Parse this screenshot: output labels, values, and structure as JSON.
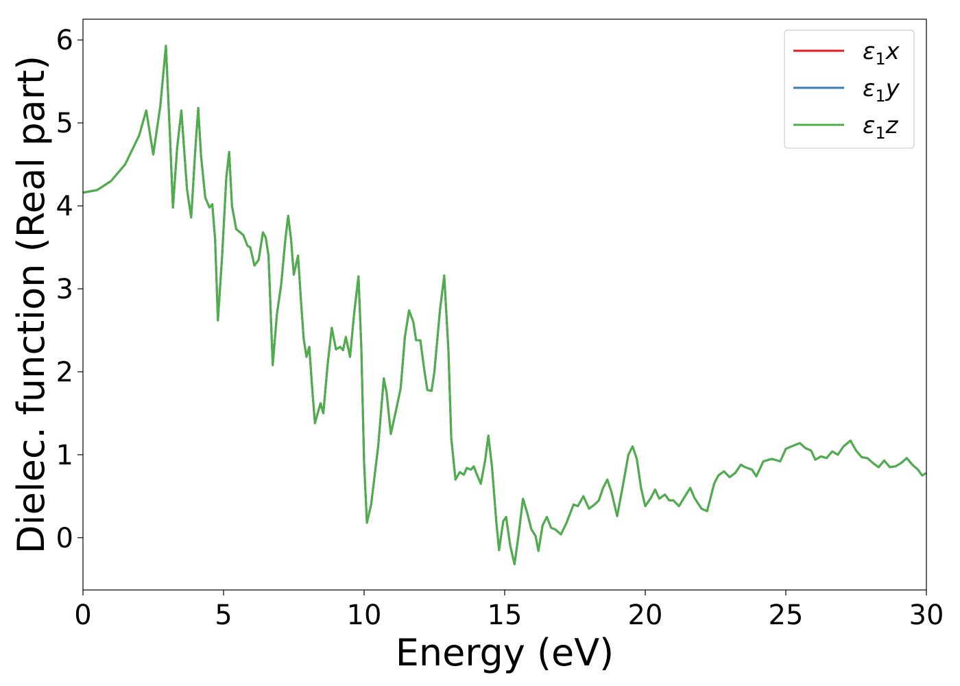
{
  "chart_data": {
    "type": "line",
    "xlabel": "Energy (eV)",
    "ylabel": "Dielec. function (Real part)",
    "xlim": [
      0,
      30
    ],
    "ylim": [
      -0.63,
      6.25
    ],
    "x_ticks": [
      0,
      5,
      10,
      15,
      20,
      25,
      30
    ],
    "y_ticks": [
      0,
      1,
      2,
      3,
      4,
      5,
      6
    ],
    "grid": false,
    "legend_position": "top-right",
    "series": [
      {
        "name": "ε1x",
        "legend_base": "ε",
        "legend_sub": "1",
        "legend_suffix": "x",
        "color": "#e41a1c",
        "points": [
          [
            0,
            4.16
          ],
          [
            0.5,
            4.19
          ],
          [
            1.0,
            4.3
          ],
          [
            1.5,
            4.5
          ],
          [
            2.0,
            4.85
          ],
          [
            2.25,
            5.15
          ],
          [
            2.5,
            4.62
          ],
          [
            2.75,
            5.2
          ],
          [
            2.95,
            5.93
          ],
          [
            3.1,
            4.8
          ],
          [
            3.2,
            3.98
          ],
          [
            3.35,
            4.7
          ],
          [
            3.5,
            5.15
          ],
          [
            3.7,
            4.2
          ],
          [
            3.85,
            3.86
          ],
          [
            4.0,
            4.7
          ],
          [
            4.1,
            5.18
          ],
          [
            4.2,
            4.6
          ],
          [
            4.35,
            4.1
          ],
          [
            4.5,
            3.98
          ],
          [
            4.6,
            4.02
          ],
          [
            4.7,
            3.6
          ],
          [
            4.8,
            2.62
          ],
          [
            4.95,
            3.4
          ],
          [
            5.1,
            4.35
          ],
          [
            5.2,
            4.65
          ],
          [
            5.3,
            4.0
          ],
          [
            5.45,
            3.72
          ],
          [
            5.7,
            3.65
          ],
          [
            5.85,
            3.52
          ],
          [
            5.95,
            3.5
          ],
          [
            6.1,
            3.28
          ],
          [
            6.25,
            3.35
          ],
          [
            6.4,
            3.68
          ],
          [
            6.5,
            3.62
          ],
          [
            6.6,
            3.4
          ],
          [
            6.75,
            2.08
          ],
          [
            6.9,
            2.7
          ],
          [
            7.05,
            3.05
          ],
          [
            7.2,
            3.6
          ],
          [
            7.3,
            3.88
          ],
          [
            7.4,
            3.6
          ],
          [
            7.5,
            3.17
          ],
          [
            7.65,
            3.4
          ],
          [
            7.75,
            2.88
          ],
          [
            7.85,
            2.4
          ],
          [
            7.95,
            2.18
          ],
          [
            8.05,
            2.3
          ],
          [
            8.15,
            1.82
          ],
          [
            8.25,
            1.38
          ],
          [
            8.35,
            1.5
          ],
          [
            8.45,
            1.62
          ],
          [
            8.55,
            1.5
          ],
          [
            8.7,
            2.08
          ],
          [
            8.85,
            2.53
          ],
          [
            9.0,
            2.27
          ],
          [
            9.15,
            2.3
          ],
          [
            9.25,
            2.26
          ],
          [
            9.35,
            2.42
          ],
          [
            9.5,
            2.18
          ],
          [
            9.65,
            2.72
          ],
          [
            9.8,
            3.15
          ],
          [
            9.9,
            2.3
          ],
          [
            10.0,
            0.9
          ],
          [
            10.1,
            0.18
          ],
          [
            10.25,
            0.4
          ],
          [
            10.5,
            1.1
          ],
          [
            10.7,
            1.92
          ],
          [
            10.8,
            1.75
          ],
          [
            10.95,
            1.25
          ],
          [
            11.1,
            1.48
          ],
          [
            11.3,
            1.8
          ],
          [
            11.45,
            2.42
          ],
          [
            11.6,
            2.74
          ],
          [
            11.75,
            2.6
          ],
          [
            11.85,
            2.38
          ],
          [
            12.0,
            2.38
          ],
          [
            12.15,
            2.0
          ],
          [
            12.25,
            1.78
          ],
          [
            12.4,
            1.77
          ],
          [
            12.5,
            2.0
          ],
          [
            12.7,
            2.75
          ],
          [
            12.85,
            3.16
          ],
          [
            13.0,
            2.25
          ],
          [
            13.1,
            1.2
          ],
          [
            13.25,
            0.7
          ],
          [
            13.4,
            0.79
          ],
          [
            13.55,
            0.76
          ],
          [
            13.65,
            0.84
          ],
          [
            13.8,
            0.82
          ],
          [
            13.9,
            0.86
          ],
          [
            14.0,
            0.77
          ],
          [
            14.15,
            0.65
          ],
          [
            14.3,
            0.92
          ],
          [
            14.42,
            1.23
          ],
          [
            14.55,
            0.85
          ],
          [
            14.7,
            0.2
          ],
          [
            14.8,
            -0.15
          ],
          [
            14.95,
            0.2
          ],
          [
            15.05,
            0.25
          ],
          [
            15.2,
            -0.1
          ],
          [
            15.35,
            -0.32
          ],
          [
            15.5,
            0.05
          ],
          [
            15.65,
            0.47
          ],
          [
            15.8,
            0.3
          ],
          [
            15.95,
            0.1
          ],
          [
            16.1,
            0.02
          ],
          [
            16.2,
            -0.16
          ],
          [
            16.35,
            0.15
          ],
          [
            16.5,
            0.25
          ],
          [
            16.65,
            0.12
          ],
          [
            16.8,
            0.1
          ],
          [
            17.0,
            0.04
          ],
          [
            17.2,
            0.18
          ],
          [
            17.45,
            0.4
          ],
          [
            17.6,
            0.38
          ],
          [
            17.8,
            0.5
          ],
          [
            18.0,
            0.35
          ],
          [
            18.2,
            0.4
          ],
          [
            18.35,
            0.45
          ],
          [
            18.5,
            0.6
          ],
          [
            18.65,
            0.7
          ],
          [
            18.8,
            0.55
          ],
          [
            19.0,
            0.26
          ],
          [
            19.2,
            0.62
          ],
          [
            19.4,
            1.0
          ],
          [
            19.55,
            1.1
          ],
          [
            19.7,
            0.95
          ],
          [
            19.85,
            0.6
          ],
          [
            20.0,
            0.38
          ],
          [
            20.2,
            0.48
          ],
          [
            20.35,
            0.58
          ],
          [
            20.5,
            0.47
          ],
          [
            20.7,
            0.52
          ],
          [
            20.85,
            0.45
          ],
          [
            21.0,
            0.45
          ],
          [
            21.2,
            0.38
          ],
          [
            21.45,
            0.52
          ],
          [
            21.6,
            0.6
          ],
          [
            21.75,
            0.48
          ],
          [
            22.0,
            0.35
          ],
          [
            22.2,
            0.32
          ],
          [
            22.45,
            0.65
          ],
          [
            22.6,
            0.75
          ],
          [
            22.8,
            0.8
          ],
          [
            23.0,
            0.73
          ],
          [
            23.2,
            0.78
          ],
          [
            23.4,
            0.88
          ],
          [
            23.55,
            0.85
          ],
          [
            23.8,
            0.82
          ],
          [
            23.95,
            0.74
          ],
          [
            24.2,
            0.92
          ],
          [
            24.5,
            0.95
          ],
          [
            24.8,
            0.92
          ],
          [
            25.0,
            1.07
          ],
          [
            25.2,
            1.1
          ],
          [
            25.5,
            1.14
          ],
          [
            25.7,
            1.08
          ],
          [
            25.9,
            1.05
          ],
          [
            26.05,
            0.94
          ],
          [
            26.25,
            0.98
          ],
          [
            26.45,
            0.96
          ],
          [
            26.65,
            1.04
          ],
          [
            26.85,
            1.0
          ],
          [
            27.05,
            1.1
          ],
          [
            27.3,
            1.17
          ],
          [
            27.5,
            1.05
          ],
          [
            27.7,
            0.97
          ],
          [
            27.9,
            0.96
          ],
          [
            28.1,
            0.9
          ],
          [
            28.3,
            0.85
          ],
          [
            28.5,
            0.93
          ],
          [
            28.7,
            0.85
          ],
          [
            28.9,
            0.86
          ],
          [
            29.1,
            0.9
          ],
          [
            29.3,
            0.96
          ],
          [
            29.5,
            0.88
          ],
          [
            29.7,
            0.82
          ],
          [
            29.85,
            0.75
          ],
          [
            30.0,
            0.78
          ]
        ]
      },
      {
        "name": "ε1y",
        "legend_base": "ε",
        "legend_sub": "1",
        "legend_suffix": "y",
        "color": "#377eb8",
        "same_as": 0
      },
      {
        "name": "ε1z",
        "legend_base": "ε",
        "legend_sub": "1",
        "legend_suffix": "z",
        "color": "#4daf4a",
        "same_as": 0
      }
    ]
  }
}
